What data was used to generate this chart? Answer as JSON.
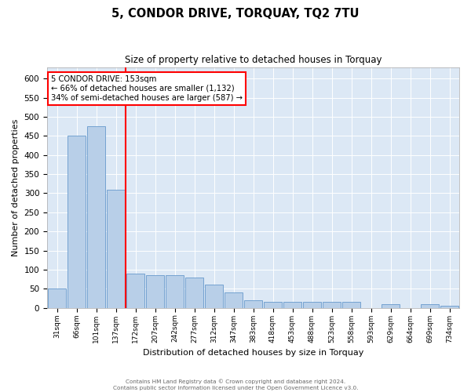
{
  "title1": "5, CONDOR DRIVE, TORQUAY, TQ2 7TU",
  "title2": "Size of property relative to detached houses in Torquay",
  "xlabel": "Distribution of detached houses by size in Torquay",
  "ylabel": "Number of detached properties",
  "categories": [
    "31sqm",
    "66sqm",
    "101sqm",
    "137sqm",
    "172sqm",
    "207sqm",
    "242sqm",
    "277sqm",
    "312sqm",
    "347sqm",
    "383sqm",
    "418sqm",
    "453sqm",
    "488sqm",
    "523sqm",
    "558sqm",
    "593sqm",
    "629sqm",
    "664sqm",
    "699sqm",
    "734sqm"
  ],
  "values": [
    50,
    450,
    475,
    310,
    90,
    85,
    85,
    80,
    60,
    40,
    20,
    15,
    15,
    15,
    15,
    15,
    0,
    10,
    0,
    10,
    5
  ],
  "bar_color": "#b8cfe8",
  "bar_edge_color": "#6699cc",
  "vline_color": "red",
  "annotation_text": "5 CONDOR DRIVE: 153sqm\n← 66% of detached houses are smaller (1,132)\n34% of semi-detached houses are larger (587) →",
  "annotation_box_color": "white",
  "annotation_box_edge_color": "red",
  "ylim": [
    0,
    630
  ],
  "yticks": [
    0,
    50,
    100,
    150,
    200,
    250,
    300,
    350,
    400,
    450,
    500,
    550,
    600
  ],
  "background_color": "#dce8f5",
  "footer1": "Contains HM Land Registry data © Crown copyright and database right 2024.",
  "footer2": "Contains public sector information licensed under the Open Government Licence v3.0."
}
